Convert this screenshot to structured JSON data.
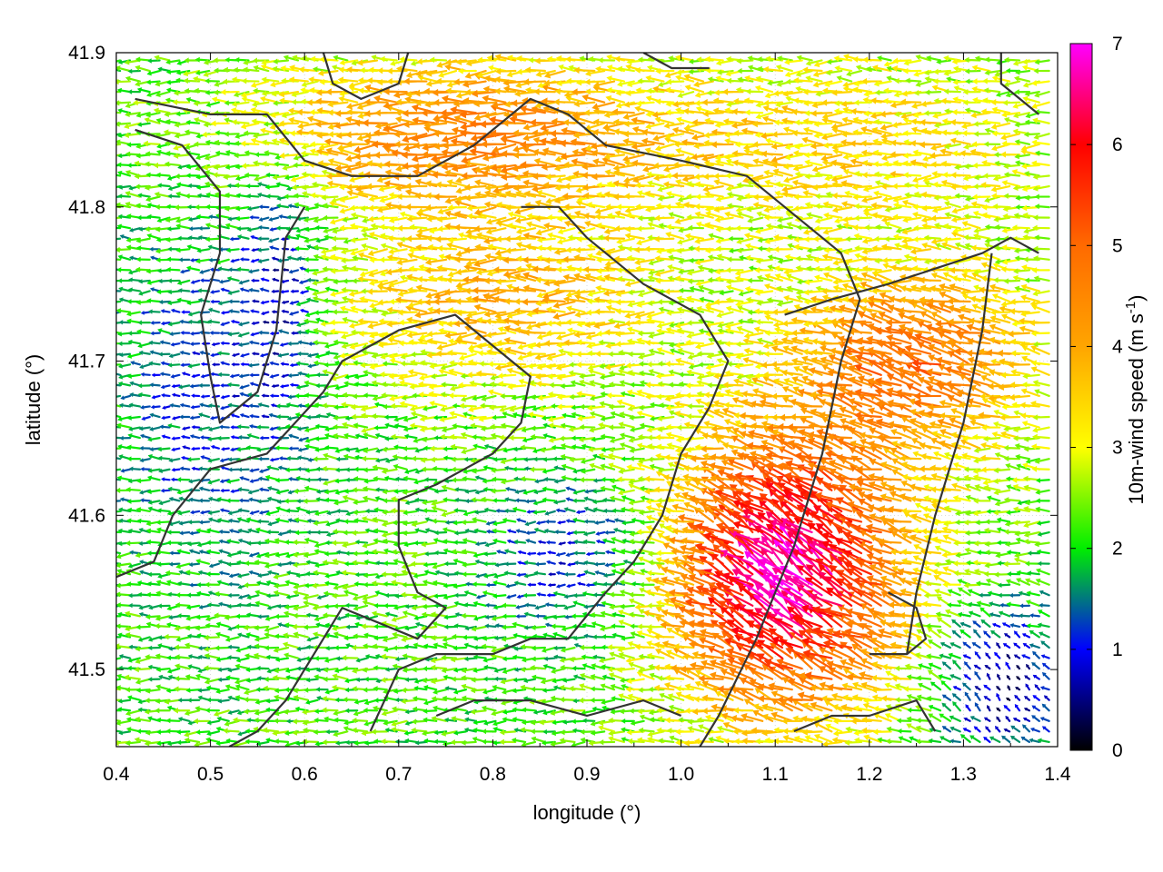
{
  "chart_data": {
    "type": "vector_field",
    "title": "",
    "xlabel": "longitude (°)",
    "ylabel": "latitude (°)",
    "colorbar_label_main": "10m-wind speed (m s",
    "colorbar_label_exp": "-1",
    "colorbar_label_close": ")",
    "xlim": [
      0.4,
      1.4
    ],
    "ylim": [
      41.45,
      41.9
    ],
    "xticks": [
      "0.4",
      "0.5",
      "0.6",
      "0.7",
      "0.8",
      "0.9",
      "1.0",
      "1.1",
      "1.2",
      "1.3",
      "1.4"
    ],
    "yticks": [
      "41.5",
      "41.6",
      "41.7",
      "41.8",
      "41.9"
    ],
    "colorbar": {
      "range": [
        0,
        7
      ],
      "ticks": [
        "0",
        "1",
        "2",
        "3",
        "4",
        "5",
        "6",
        "7"
      ],
      "stops": [
        {
          "v": 0,
          "color": "#000000"
        },
        {
          "v": 1,
          "color": "#0000ff"
        },
        {
          "v": 2,
          "color": "#00ee00"
        },
        {
          "v": 3,
          "color": "#ffff00"
        },
        {
          "v": 4,
          "color": "#ffa500"
        },
        {
          "v": 5,
          "color": "#ff6a00"
        },
        {
          "v": 6,
          "color": "#ff0000"
        },
        {
          "v": 7,
          "color": "#ff00ff"
        }
      ]
    },
    "grid": true,
    "wind_regions": [
      {
        "area": "north-center band",
        "lon": [
          0.55,
          0.95
        ],
        "lat": [
          41.8,
          41.9
        ],
        "speed_m_s": 4.5,
        "direction": "west"
      },
      {
        "area": "north-east",
        "lon": [
          1.05,
          1.4
        ],
        "lat": [
          41.78,
          41.9
        ],
        "speed_m_s": 3.5,
        "direction": "west"
      },
      {
        "area": "west coast",
        "lon": [
          0.4,
          0.6
        ],
        "lat": [
          41.55,
          41.8
        ],
        "speed_m_s": 2.0,
        "direction": "west"
      },
      {
        "area": "center",
        "lon": [
          0.65,
          1.0
        ],
        "lat": [
          41.6,
          41.8
        ],
        "speed_m_s": 3.5,
        "direction": "west"
      },
      {
        "area": "south-east gust",
        "lon": [
          0.98,
          1.25
        ],
        "lat": [
          41.45,
          41.62
        ],
        "speed_m_s": 6.5,
        "direction": "north-west"
      },
      {
        "area": "east ridge",
        "lon": [
          1.15,
          1.4
        ],
        "lat": [
          41.6,
          41.75
        ],
        "speed_m_s": 5.0,
        "direction": "west-north-west"
      },
      {
        "area": "south-east calm",
        "lon": [
          1.25,
          1.4
        ],
        "lat": [
          41.45,
          41.55
        ],
        "speed_m_s": 0.8,
        "direction": "north"
      }
    ]
  }
}
